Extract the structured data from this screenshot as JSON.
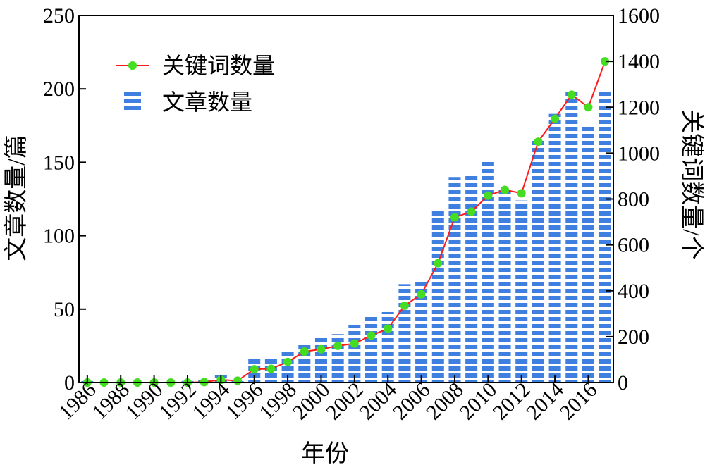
{
  "chart_data": {
    "type": "bar",
    "categories": [
      "1986",
      "1987",
      "1988",
      "1989",
      "1990",
      "1991",
      "1992",
      "1993",
      "1994",
      "1995",
      "1996",
      "1997",
      "1998",
      "1999",
      "2000",
      "2001",
      "2002",
      "2003",
      "2004",
      "2005",
      "2006",
      "2007",
      "2008",
      "2009",
      "2010",
      "2011",
      "2012",
      "2013",
      "2014",
      "2015",
      "2016",
      "2017"
    ],
    "x_tick_labels": [
      "1986",
      "1988",
      "1990",
      "1992",
      "1994",
      "1996",
      "1998",
      "2000",
      "2002",
      "2004",
      "2006",
      "2008",
      "2010",
      "2012",
      "2014",
      "2016"
    ],
    "xlabel": "年份",
    "ylabel_left": "文章数量/篇",
    "ylabel_right": "关键词数量/个",
    "ylim_left": [
      0,
      250
    ],
    "ylim_right": [
      0,
      1600
    ],
    "yticks_left": [
      "0",
      "50",
      "100",
      "150",
      "200",
      "250"
    ],
    "yticks_right": [
      "0",
      "200",
      "400",
      "600",
      "800",
      "1000",
      "1200",
      "1400",
      "1600"
    ],
    "series": [
      {
        "name": "文章数量",
        "type": "bar",
        "axis": "left",
        "color": "#3f7fe0",
        "values": [
          1,
          0,
          0,
          0,
          0,
          0,
          1,
          2,
          5,
          1,
          17,
          17,
          22,
          27,
          31,
          33,
          39,
          45,
          48,
          67,
          69,
          117,
          140,
          143,
          152,
          133,
          124,
          166,
          183,
          198,
          175,
          198
        ]
      },
      {
        "name": "关键词数量",
        "type": "line",
        "axis": "right",
        "color": "#ff1a1a",
        "marker_color": "#44dd22",
        "values": [
          0,
          0,
          0,
          0,
          0,
          0,
          0,
          2,
          12,
          8,
          58,
          60,
          90,
          135,
          145,
          160,
          170,
          205,
          235,
          335,
          385,
          520,
          720,
          745,
          815,
          840,
          825,
          1050,
          1150,
          1255,
          1200,
          1400
        ]
      }
    ],
    "legend_position": "top-left",
    "grid": false
  }
}
